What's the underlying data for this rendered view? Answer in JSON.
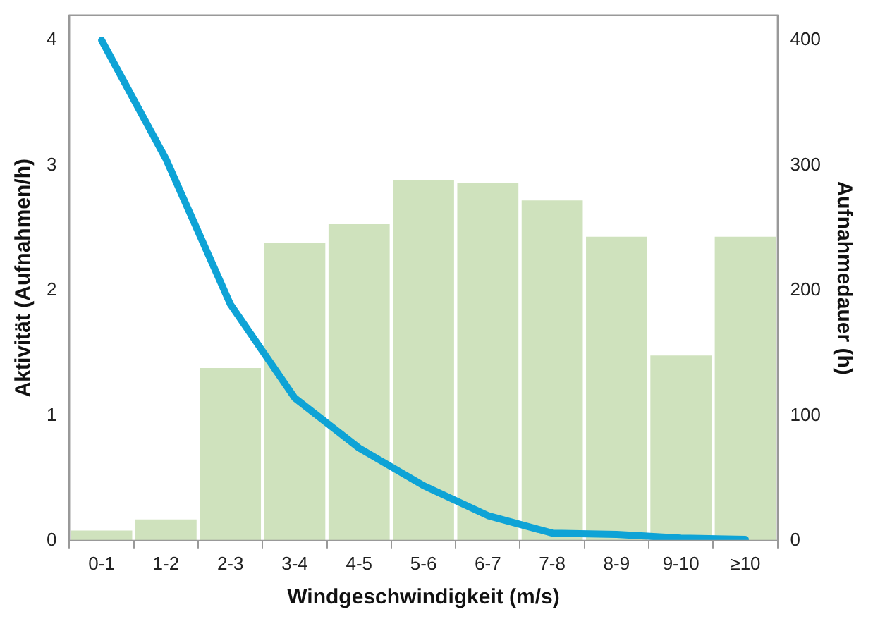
{
  "chart_data": {
    "type": "bar",
    "xlabel": "Windgeschwindigkeit (m/s)",
    "ylabel": "Aktivität (Aufnahmen/h)",
    "y2label": "Aufnahmedauer (h)",
    "categories": [
      "0-1",
      "1-2",
      "2-3",
      "3-4",
      "4-5",
      "5-6",
      "6-7",
      "7-8",
      "8-9",
      "9-10",
      "≥10"
    ],
    "series": [
      {
        "axis": "y2",
        "color": "#cfe2bd",
        "values": [
          8,
          17,
          138,
          238,
          253,
          288,
          286,
          272,
          243,
          148,
          243
        ]
      },
      {
        "type": "line",
        "axis": "y",
        "color": "#0ea3d6",
        "values": [
          4.0,
          3.05,
          1.89,
          1.14,
          0.74,
          0.44,
          0.2,
          0.06,
          0.05,
          0.02,
          0.01
        ]
      }
    ],
    "ylim": [
      0,
      4.2
    ],
    "yticks": [
      0,
      1,
      2,
      3,
      4
    ],
    "y2lim": [
      0,
      420
    ],
    "y2ticks": [
      0,
      100,
      200,
      300,
      400
    ],
    "grid": false,
    "legend": false,
    "marker": "none",
    "line_style": "solid"
  }
}
